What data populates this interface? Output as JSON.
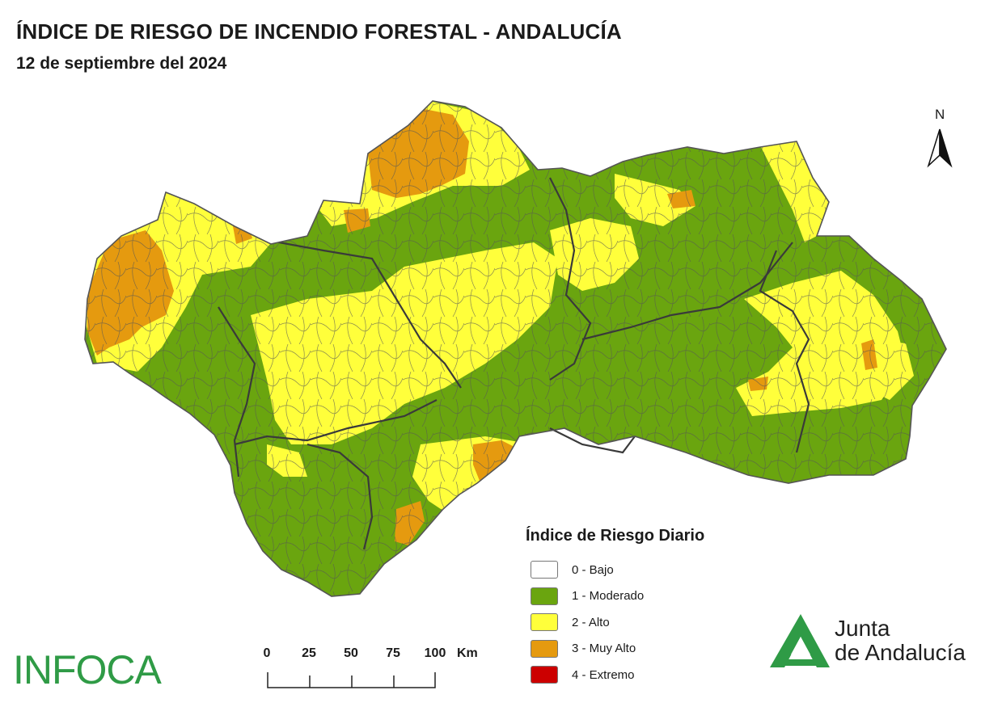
{
  "header": {
    "title": "ÍNDICE DE RIESGO DE INCENDIO FORESTAL - ANDALUCÍA",
    "date": "12 de septiembre del 2024"
  },
  "north_arrow": {
    "label": "N"
  },
  "legend": {
    "title": "Índice de Riesgo Diario",
    "items": [
      {
        "label": "0 - Bajo",
        "color": "#ffffff"
      },
      {
        "label": "1 - Moderado",
        "color": "#6aa50f"
      },
      {
        "label": "2 - Alto",
        "color": "#ffff3b"
      },
      {
        "label": "3 - Muy Alto",
        "color": "#e59a0f"
      },
      {
        "label": "4 - Extremo",
        "color": "#cc0000"
      }
    ]
  },
  "scale_bar": {
    "ticks": [
      "0",
      "25",
      "50",
      "75",
      "100"
    ],
    "unit": "Km"
  },
  "logos": {
    "infoca": "INFOCA",
    "junta_line1": "Junta",
    "junta_line2": "de Andalucía",
    "junta_color": "#2f9b46"
  },
  "map": {
    "region": "Andalucía",
    "base_color": "#6aa50f",
    "alto_color": "#ffff3b",
    "muy_alto_color": "#e59a0f",
    "border_color": "#555555"
  }
}
